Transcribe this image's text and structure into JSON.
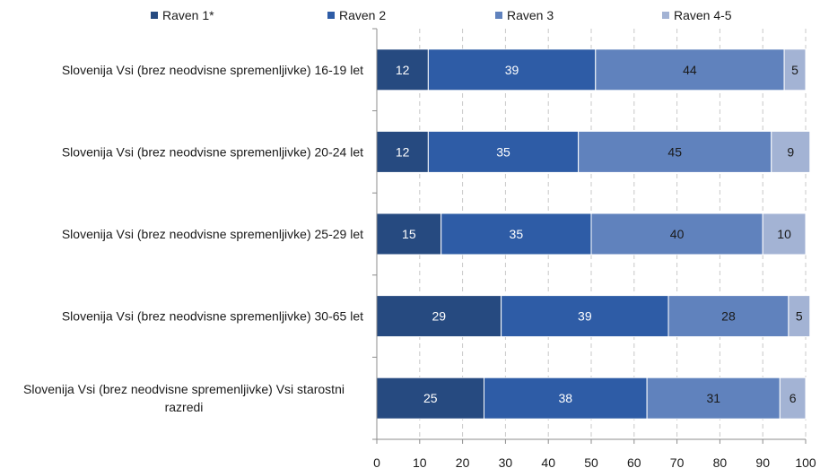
{
  "chart_data": {
    "type": "bar",
    "orientation": "horizontal",
    "stacked": true,
    "categories": [
      [
        "Slovenija Vsi (brez neodvisne spremenljivke) 16-19 let"
      ],
      [
        "Slovenija Vsi (brez neodvisne spremenljivke) 20-24 let"
      ],
      [
        "Slovenija Vsi (brez neodvisne spremenljivke) 25-29 let"
      ],
      [
        "Slovenija Vsi (brez neodvisne spremenljivke) 30-65 let"
      ],
      [
        "Slovenija Vsi (brez neodvisne spremenljivke) Vsi starostni",
        "razredi"
      ]
    ],
    "series": [
      {
        "name": "Raven 1*",
        "color": "#264a80",
        "label_color": "#ffffff",
        "values": [
          12,
          12,
          15,
          29,
          25
        ]
      },
      {
        "name": "Raven 2",
        "color": "#2e5ca6",
        "label_color": "#ffffff",
        "values": [
          39,
          35,
          35,
          39,
          38
        ]
      },
      {
        "name": "Raven 3",
        "color": "#6082bd",
        "label_color": "#1a1a1a",
        "values": [
          44,
          45,
          40,
          28,
          31
        ]
      },
      {
        "name": "Raven 4-5",
        "color": "#a3b3d4",
        "label_color": "#1a1a1a",
        "values": [
          5,
          9,
          10,
          5,
          6
        ]
      }
    ],
    "xlim": [
      0,
      100
    ],
    "xticks": [
      0,
      10,
      20,
      30,
      40,
      50,
      60,
      70,
      80,
      90,
      100
    ],
    "grid": "vertical-dashed",
    "legend_position": "top"
  }
}
